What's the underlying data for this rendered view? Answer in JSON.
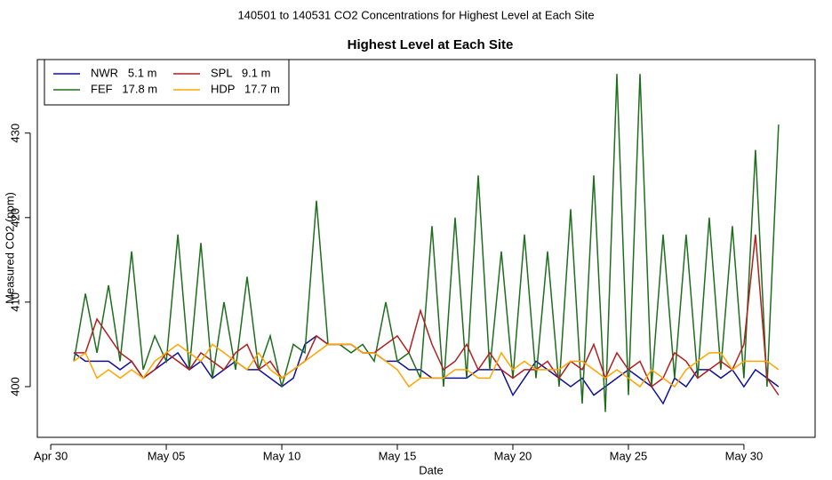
{
  "chart_data": {
    "type": "line",
    "title": "140501  to  140531 CO2 Concentrations for Highest Level at Each Site",
    "subtitle": "Highest Level at Each Site",
    "x_label": "Date",
    "y_label": "Measured CO2 (ppm)",
    "x": [
      1,
      1.5,
      2,
      2.5,
      3,
      3.5,
      4,
      4.5,
      5,
      5.5,
      6,
      6.5,
      7,
      7.5,
      8,
      8.5,
      9,
      9.5,
      10,
      10.5,
      11,
      11.5,
      12,
      12.5,
      13,
      13.5,
      14,
      14.5,
      15,
      15.5,
      16,
      16.5,
      17,
      17.5,
      18,
      18.5,
      19,
      19.5,
      20,
      20.5,
      21,
      21.5,
      22,
      22.5,
      23,
      23.5,
      24,
      24.5,
      25,
      25.5,
      26,
      26.5,
      27,
      27.5,
      28,
      28.5,
      29,
      29.5,
      30,
      30.5,
      31,
      31.5
    ],
    "xlim": [
      -0.58,
      33.08
    ],
    "xticks": [
      {
        "value": 0,
        "label": "Apr 30"
      },
      {
        "value": 5,
        "label": "May 05"
      },
      {
        "value": 10,
        "label": "May 10"
      },
      {
        "value": 15,
        "label": "May 15"
      },
      {
        "value": 20,
        "label": "May 20"
      },
      {
        "value": 25,
        "label": "May 25"
      },
      {
        "value": 30,
        "label": "May 30"
      }
    ],
    "ylim": [
      394,
      438.7
    ],
    "yticks": [
      400,
      410,
      420,
      430
    ],
    "legend": "top-left",
    "series": [
      {
        "name": "NWR   5.1 m",
        "color": "#10109a",
        "values": [
          404,
          403,
          403,
          403,
          402,
          403,
          401,
          402,
          403,
          404,
          402,
          403,
          401,
          402,
          403,
          402,
          402,
          401,
          400,
          401,
          405,
          406,
          405,
          405,
          405,
          404,
          404,
          403,
          403,
          402,
          402,
          401,
          401,
          401,
          401,
          402,
          402,
          402,
          399,
          401,
          403,
          402,
          401,
          400,
          401,
          399,
          400,
          401,
          402,
          401,
          400,
          398,
          401,
          400,
          402,
          402,
          401,
          402,
          400,
          402,
          401,
          400
        ]
      },
      {
        "name": "FEF   17.8 m",
        "color": "#1e6e1e",
        "values": [
          403,
          411,
          404,
          412,
          403,
          416,
          402,
          406,
          403,
          418,
          402,
          417,
          401,
          410,
          402,
          413,
          402,
          406,
          400,
          405,
          404,
          422,
          405,
          405,
          404,
          405,
          403,
          410,
          403,
          404,
          401,
          419,
          400,
          420,
          401,
          425,
          402,
          416,
          401,
          418,
          401,
          416,
          400,
          421,
          398,
          425,
          397,
          437,
          399,
          437,
          400,
          418,
          401,
          418,
          401,
          420,
          402,
          419,
          401,
          428,
          400,
          431
        ]
      },
      {
        "name": "SPL   9.1 m",
        "color": "#b02020",
        "values": [
          404,
          404,
          408,
          406,
          404,
          403,
          401,
          402,
          404,
          403,
          402,
          404,
          403,
          402,
          404,
          405,
          402,
          403,
          401,
          402,
          403,
          406,
          405,
          405,
          405,
          404,
          404,
          405,
          406,
          404,
          409,
          405,
          402,
          403,
          405,
          402,
          404,
          402,
          401,
          402,
          402,
          403,
          401,
          403,
          402,
          405,
          401,
          404,
          402,
          403,
          400,
          401,
          404,
          403,
          401,
          402,
          403,
          402,
          405,
          418,
          401,
          399
        ]
      },
      {
        "name": "HDP   17.7 m",
        "color": "#ffa500",
        "values": [
          403,
          404,
          401,
          402,
          401,
          402,
          401,
          403,
          404,
          405,
          404,
          403,
          405,
          404,
          403,
          402,
          404,
          402,
          401,
          402,
          403,
          404,
          405,
          405,
          405,
          404,
          404,
          403,
          402,
          400,
          401,
          401,
          401,
          402,
          402,
          401,
          401,
          404,
          402,
          403,
          402,
          402,
          402,
          403,
          403,
          402,
          401,
          402,
          401,
          400,
          402,
          401,
          400,
          402,
          403,
          404,
          404,
          402,
          403,
          403,
          403,
          402
        ]
      }
    ]
  }
}
